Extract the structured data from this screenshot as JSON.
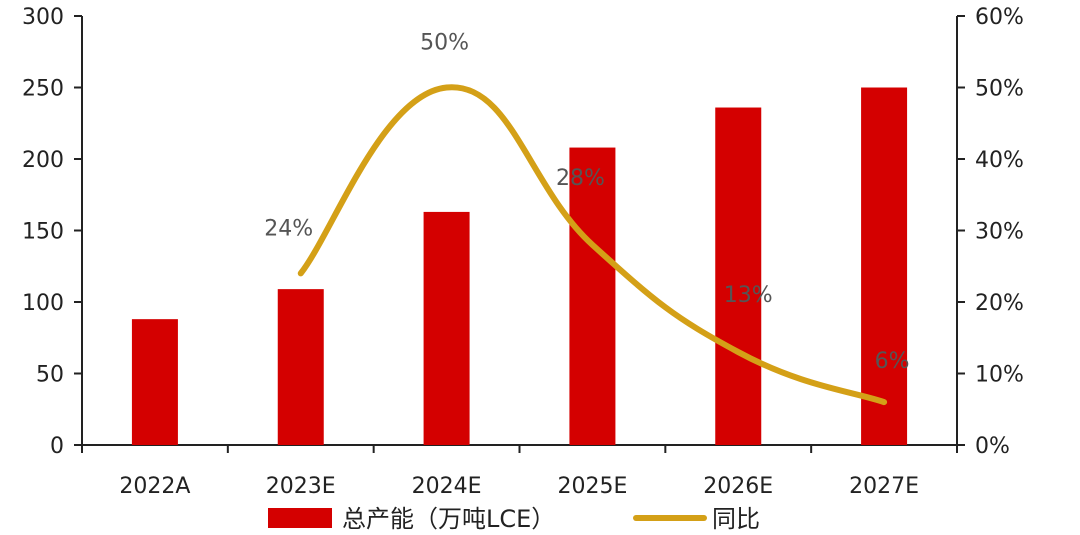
{
  "chart_data": {
    "type": "bar",
    "categories": [
      "2022A",
      "2023E",
      "2024E",
      "2025E",
      "2026E",
      "2027E"
    ],
    "series": [
      {
        "name": "总产能（万吨LCE）",
        "type": "bar",
        "axis": "left",
        "values": [
          88,
          109,
          163,
          208,
          236,
          250
        ],
        "color": "#d40000"
      },
      {
        "name": "同比",
        "type": "line",
        "axis": "right",
        "values": [
          null,
          24,
          50,
          28,
          13,
          6
        ],
        "labels": [
          "",
          "24%",
          "50%",
          "28%",
          "13%",
          "6%"
        ],
        "color": "#d4a017"
      }
    ],
    "y_left": {
      "min": 0,
      "max": 300,
      "ticks": [
        "0",
        "50",
        "100",
        "150",
        "200",
        "250",
        "300"
      ]
    },
    "y_right": {
      "min": 0,
      "max": 60,
      "ticks": [
        "0%",
        "10%",
        "20%",
        "30%",
        "40%",
        "50%",
        "60%"
      ]
    },
    "grid": false,
    "legend_position": "bottom"
  }
}
